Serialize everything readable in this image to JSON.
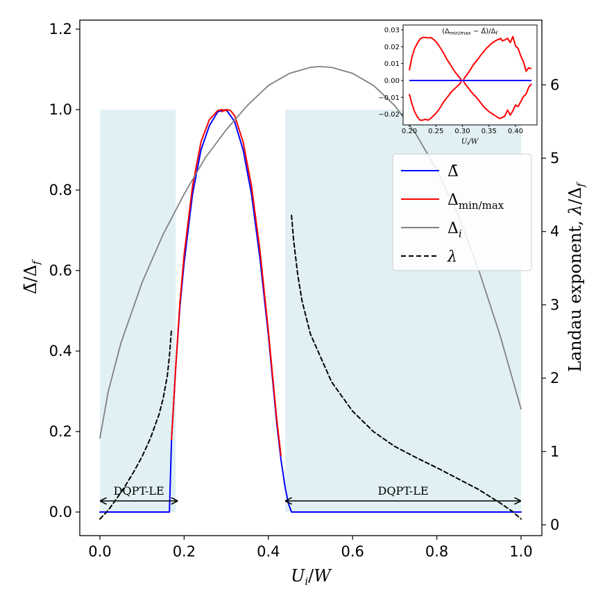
{
  "chart_data": [
    {
      "type": "line",
      "title": "",
      "xlabel": "U_i/W",
      "ylabel_left": "Δ̄/Δ_f",
      "ylabel_right": "Landau exponent, λ/Δ_f",
      "xlim": [
        -0.04,
        1.04
      ],
      "ylim_left": [
        -0.05,
        1.22
      ],
      "ylim_right": [
        -0.05,
        7.0
      ],
      "x_ticks": [
        "0.0",
        "0.2",
        "0.4",
        "0.6",
        "0.8",
        "1.0"
      ],
      "x_tick_values": [
        0.0,
        0.2,
        0.4,
        0.6,
        0.8,
        1.0
      ],
      "y_ticks_left": [
        "0.0",
        "0.2",
        "0.4",
        "0.6",
        "0.8",
        "1.0",
        "1.2"
      ],
      "y_tick_values_left": [
        0.0,
        0.2,
        0.4,
        0.6,
        0.8,
        1.0,
        1.2
      ],
      "y_ticks_right": [
        "0",
        "1",
        "2",
        "3",
        "4",
        "5",
        "6"
      ],
      "y_tick_values_right": [
        0,
        1,
        2,
        3,
        4,
        5,
        6
      ],
      "legend": {
        "position": "center-right",
        "entries": [
          {
            "key": "bar",
            "label": "Δ̄",
            "color": "#0000ff",
            "dash": false
          },
          {
            "key": "minmax",
            "label": "Δ",
            "sub": "min/max",
            "color": "#ff0000",
            "dash": false
          },
          {
            "key": "delta_i",
            "label": "Δ",
            "sub": "i",
            "color": "#808080",
            "dash": false
          },
          {
            "key": "lambda",
            "label": "λ",
            "color": "#000000",
            "dash": true
          }
        ]
      },
      "shaded_regions": [
        {
          "x_start": 0.0,
          "x_end": 0.18,
          "y_top": 1.0,
          "color": "#e1f0f3"
        },
        {
          "x_start": 0.44,
          "x_end": 1.0,
          "y_top": 1.0,
          "color": "#e1f0f3"
        }
      ],
      "annotations": [
        {
          "text": "DQPT-LE",
          "x_start": 0.0,
          "x_end": 0.185,
          "y": 0.1
        },
        {
          "text": "DQPT-LE",
          "x_start": 0.44,
          "x_end": 1.0,
          "y": 0.1
        }
      ],
      "series": [
        {
          "name": "Δ̄",
          "axis": "left",
          "color": "#0000ff",
          "x": [
            0.0,
            0.165,
            0.17,
            0.18,
            0.19,
            0.2,
            0.22,
            0.24,
            0.26,
            0.28,
            0.3,
            0.32,
            0.34,
            0.36,
            0.38,
            0.4,
            0.42,
            0.43,
            0.44,
            0.448,
            0.455,
            0.46,
            1.0
          ],
          "y": [
            0.0,
            0.0,
            0.18,
            0.36,
            0.51,
            0.62,
            0.79,
            0.9,
            0.96,
            0.995,
            1.0,
            0.97,
            0.9,
            0.79,
            0.63,
            0.44,
            0.22,
            0.13,
            0.06,
            0.02,
            0.0,
            0.0,
            0.0
          ]
        },
        {
          "name": "Δ_min",
          "axis": "left",
          "color": "#ff0000",
          "x": [
            0.17,
            0.18,
            0.19,
            0.2,
            0.22,
            0.24,
            0.26,
            0.28,
            0.29,
            0.3
          ],
          "y": [
            0.18,
            0.36,
            0.52,
            0.64,
            0.81,
            0.92,
            0.975,
            0.998,
            1.0,
            0.997
          ]
        },
        {
          "name": "Δ_max",
          "axis": "left",
          "color": "#ff0000",
          "x": [
            0.29,
            0.3,
            0.31,
            0.32,
            0.34,
            0.36,
            0.38,
            0.4,
            0.42,
            0.43
          ],
          "y": [
            0.995,
            1.0,
            0.998,
            0.985,
            0.92,
            0.81,
            0.65,
            0.45,
            0.23,
            0.14
          ]
        },
        {
          "name": "Δ_i",
          "axis": "left",
          "color": "#808080",
          "x": [
            0.0,
            0.02,
            0.05,
            0.1,
            0.15,
            0.2,
            0.25,
            0.3,
            0.35,
            0.4,
            0.45,
            0.5,
            0.52,
            0.55,
            0.6,
            0.65,
            0.7,
            0.75,
            0.8,
            0.85,
            0.9,
            0.95,
            1.0
          ],
          "y": [
            0.184,
            0.3,
            0.42,
            0.57,
            0.69,
            0.79,
            0.88,
            0.95,
            1.01,
            1.06,
            1.09,
            1.105,
            1.107,
            1.105,
            1.09,
            1.06,
            1.01,
            0.94,
            0.85,
            0.74,
            0.6,
            0.44,
            0.256
          ]
        },
        {
          "name": "λ (left)",
          "axis": "right",
          "color": "#000000",
          "dash": true,
          "x": [
            0.0,
            0.02,
            0.04,
            0.06,
            0.08,
            0.1,
            0.12,
            0.14,
            0.15,
            0.16,
            0.165,
            0.17
          ],
          "y": [
            0.08,
            0.2,
            0.36,
            0.53,
            0.72,
            0.93,
            1.18,
            1.5,
            1.72,
            2.03,
            2.3,
            2.67
          ]
        },
        {
          "name": "λ (right)",
          "axis": "right",
          "color": "#000000",
          "dash": true,
          "x": [
            0.455,
            0.46,
            0.47,
            0.48,
            0.5,
            0.55,
            0.6,
            0.65,
            0.7,
            0.75,
            0.8,
            0.85,
            0.9,
            0.95,
            0.98,
            1.0
          ],
          "y": [
            4.22,
            3.88,
            3.4,
            3.05,
            2.6,
            1.95,
            1.55,
            1.27,
            1.07,
            0.92,
            0.78,
            0.63,
            0.48,
            0.3,
            0.18,
            0.08
          ]
        }
      ]
    },
    {
      "type": "line",
      "title": "(Δ_min/max − Δ̄)/Δ_f",
      "xlabel": "U_i/W",
      "ylabel": "",
      "xlim": [
        0.195,
        0.435
      ],
      "ylim": [
        -0.025,
        0.031
      ],
      "x_ticks": [
        "0.20",
        "0.25",
        "0.30",
        "0.35",
        "0.40"
      ],
      "x_tick_values": [
        0.2,
        0.25,
        0.3,
        0.35,
        0.4
      ],
      "y_ticks": [
        "−0.02",
        "−0.01",
        "0.00",
        "0.01",
        "0.02",
        "0.03"
      ],
      "y_tick_values": [
        -0.02,
        -0.01,
        0.0,
        0.01,
        0.02,
        0.03
      ],
      "series": [
        {
          "name": "upper",
          "color": "#ff0000",
          "x": [
            0.2,
            0.205,
            0.21,
            0.215,
            0.22,
            0.225,
            0.23,
            0.235,
            0.24,
            0.245,
            0.25,
            0.255,
            0.26,
            0.265,
            0.27,
            0.275,
            0.28,
            0.285,
            0.29,
            0.295,
            0.298
          ],
          "y": [
            0.006,
            0.014,
            0.019,
            0.022,
            0.0245,
            0.0255,
            0.0255,
            0.0252,
            0.0255,
            0.0245,
            0.023,
            0.021,
            0.0185,
            0.016,
            0.013,
            0.0105,
            0.008,
            0.0055,
            0.0035,
            0.0015,
            0.0005
          ]
        },
        {
          "name": "upper-right",
          "color": "#ff0000",
          "x": [
            0.302,
            0.305,
            0.31,
            0.315,
            0.32,
            0.325,
            0.33,
            0.335,
            0.34,
            0.345,
            0.35,
            0.355,
            0.36,
            0.365,
            0.37,
            0.372,
            0.375,
            0.38,
            0.385,
            0.39,
            0.395,
            0.4,
            0.405,
            0.41,
            0.415,
            0.42,
            0.425,
            0.43
          ],
          "y": [
            0.0005,
            0.002,
            0.004,
            0.0065,
            0.009,
            0.011,
            0.013,
            0.0152,
            0.017,
            0.019,
            0.0205,
            0.022,
            0.023,
            0.024,
            0.0245,
            0.025,
            0.0235,
            0.024,
            0.025,
            0.0225,
            0.026,
            0.0205,
            0.019,
            0.0145,
            0.011,
            0.0055,
            0.0075,
            0.007
          ]
        },
        {
          "name": "lower",
          "color": "#ff0000",
          "x": [
            0.2,
            0.205,
            0.21,
            0.215,
            0.22,
            0.225,
            0.23,
            0.235,
            0.24,
            0.245,
            0.25,
            0.255,
            0.26,
            0.265,
            0.27,
            0.275,
            0.28,
            0.285,
            0.29,
            0.295,
            0.298
          ],
          "y": [
            -0.008,
            -0.014,
            -0.0185,
            -0.0215,
            -0.0235,
            -0.0235,
            -0.023,
            -0.0235,
            -0.0225,
            -0.021,
            -0.0195,
            -0.0175,
            -0.015,
            -0.0125,
            -0.0105,
            -0.0085,
            -0.0065,
            -0.005,
            -0.0035,
            -0.002,
            -0.0005
          ]
        },
        {
          "name": "lower-right",
          "color": "#ff0000",
          "x": [
            0.302,
            0.305,
            0.31,
            0.315,
            0.32,
            0.325,
            0.33,
            0.335,
            0.34,
            0.345,
            0.35,
            0.355,
            0.36,
            0.365,
            0.37,
            0.375,
            0.38,
            0.385,
            0.39,
            0.395,
            0.4,
            0.405,
            0.41,
            0.415,
            0.42,
            0.425,
            0.43
          ],
          "y": [
            -0.0005,
            -0.002,
            -0.004,
            -0.006,
            -0.008,
            -0.0095,
            -0.0115,
            -0.0135,
            -0.0155,
            -0.017,
            -0.0185,
            -0.0195,
            -0.0205,
            -0.0215,
            -0.0225,
            -0.022,
            -0.021,
            -0.0175,
            -0.0205,
            -0.018,
            -0.0145,
            -0.0155,
            -0.0125,
            -0.0095,
            -0.008,
            -0.004,
            -0.002
          ]
        },
        {
          "name": "zero",
          "color": "#0000ff",
          "x": [
            0.2,
            0.43
          ],
          "y": [
            0.0,
            0.0
          ]
        }
      ]
    }
  ]
}
